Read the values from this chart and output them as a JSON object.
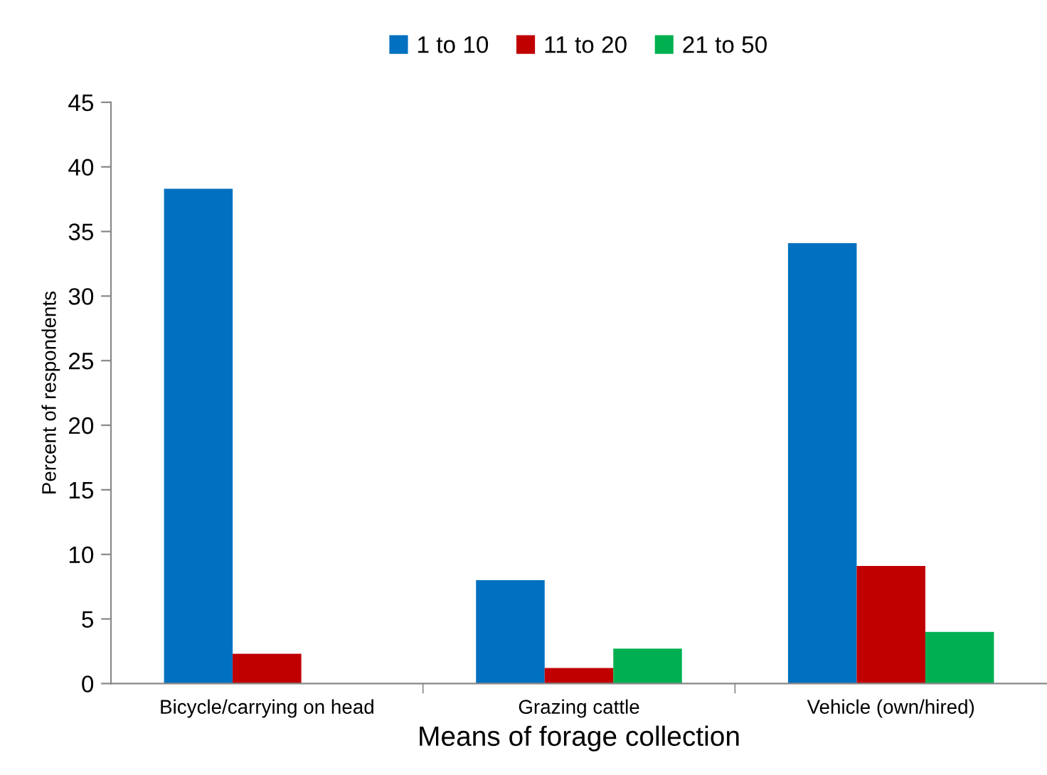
{
  "chart_data": {
    "type": "bar",
    "xlabel": "Means of forage collection",
    "ylabel": "Percent of respondents",
    "categories": [
      "Bicycle/carrying on head",
      "Grazing cattle",
      "Vehicle (own/hired)"
    ],
    "series": [
      {
        "name": "1 to 10",
        "color": "#0070c0",
        "values": [
          38.3,
          8.0,
          34.1
        ]
      },
      {
        "name": "11 to 20",
        "color": "#c00000",
        "values": [
          2.3,
          1.2,
          9.1
        ]
      },
      {
        "name": "21 to 50",
        "color": "#00b050",
        "values": [
          0,
          2.7,
          4.0
        ]
      }
    ],
    "ylim": [
      0,
      45
    ],
    "yticks": [
      0,
      5,
      10,
      15,
      20,
      25,
      30,
      35,
      40,
      45
    ],
    "grid": false,
    "legend": "top"
  }
}
